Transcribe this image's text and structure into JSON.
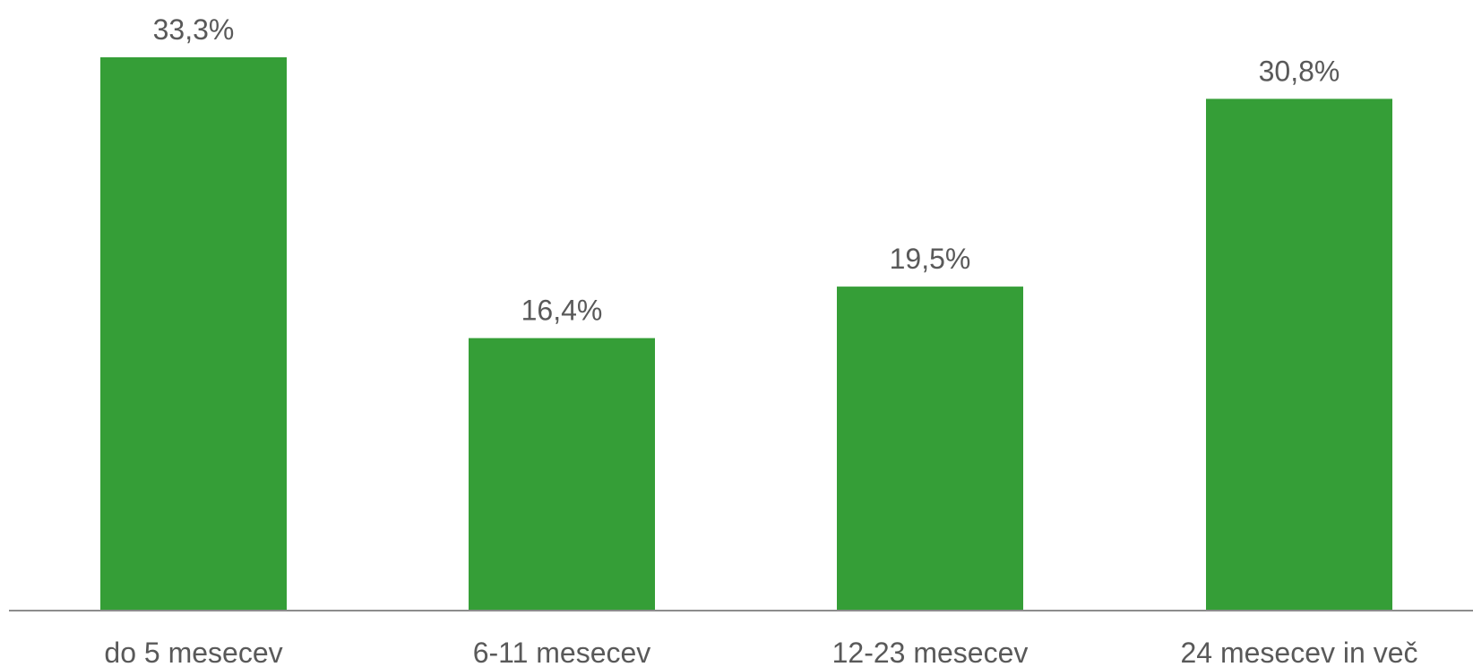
{
  "chart_data": {
    "type": "bar",
    "categories": [
      "do 5 mesecev",
      "6-11 mesecev",
      "12-23 mesecev",
      "24 mesecev in več"
    ],
    "values": [
      33.3,
      16.4,
      19.5,
      30.8
    ],
    "value_labels": [
      "33,3%",
      "16,4%",
      "19,5%",
      "30,8%"
    ],
    "title": "",
    "xlabel": "",
    "ylabel": "",
    "ylim": [
      0,
      33.3
    ],
    "grid": false,
    "legend": "none",
    "bar_color": "#359E37",
    "axis_color": "#8C8C8C",
    "label_color": "#595959"
  }
}
